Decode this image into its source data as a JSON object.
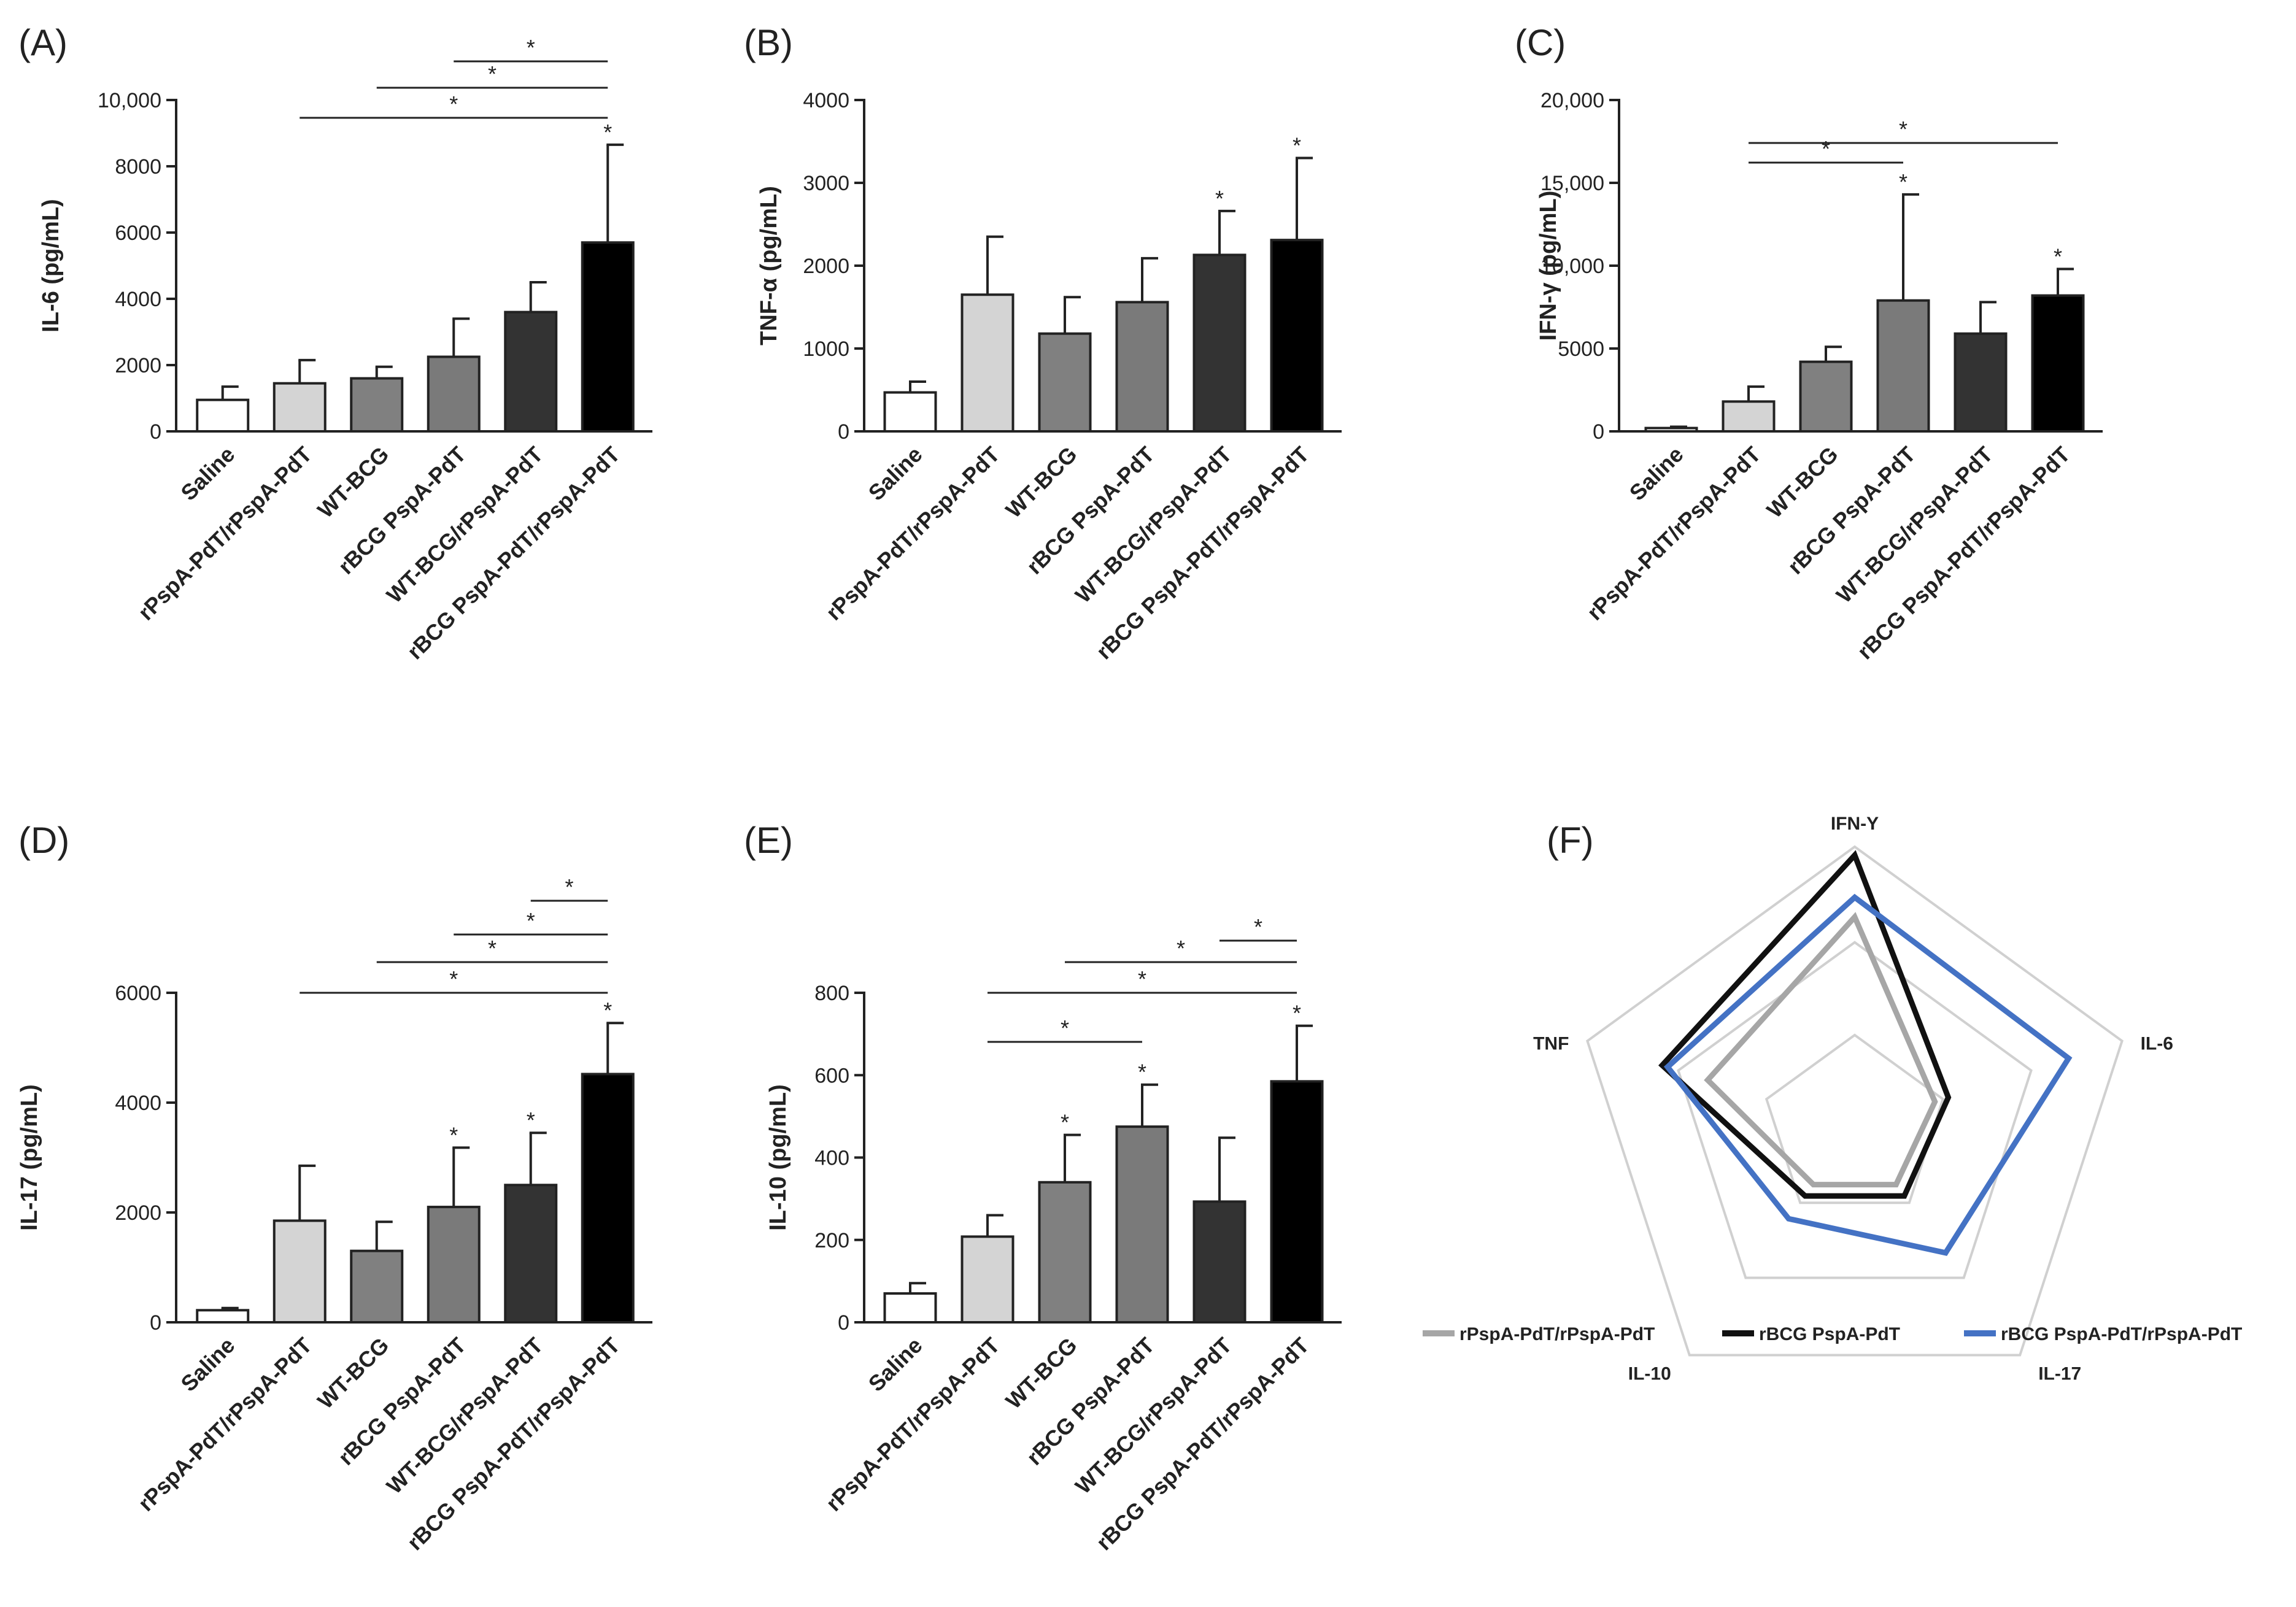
{
  "figure": {
    "categories": [
      "Saline",
      "rPspA-PdT/rPspA-PdT",
      "WT-BCG",
      "rBCG PspA-PdT",
      "WT-BCG/rPspA-PdT",
      "rBCG PspA-PdT/rPspA-PdT"
    ],
    "bar_colors": [
      "#ffffff",
      "#d4d4d4",
      "#808080",
      "#7a7a7a",
      "#333333",
      "#000000"
    ],
    "significance_marker": "*"
  },
  "chart_data": [
    {
      "type": "bar",
      "panel": "(A)",
      "ylabel": "IL-6 (pg/mL)",
      "ylim": [
        0,
        10000
      ],
      "yticks": [
        0,
        2000,
        4000,
        6000,
        8000,
        10000
      ],
      "ytick_labels": [
        "0",
        "2000",
        "4000",
        "6000",
        "8000",
        "10,000"
      ],
      "values": [
        950,
        1450,
        1600,
        2250,
        3600,
        5700
      ],
      "errors": [
        400,
        700,
        350,
        1150,
        900,
        2950
      ],
      "bar_stars": [
        false,
        false,
        false,
        false,
        false,
        true
      ],
      "brackets": [
        {
          "from": 3,
          "to": 5,
          "label": "*"
        },
        {
          "from": 2,
          "to": 5,
          "label": "*"
        },
        {
          "from": 1,
          "to": 5,
          "label": "*"
        }
      ]
    },
    {
      "type": "bar",
      "panel": "(B)",
      "ylabel": "TNF-α (pg/mL)",
      "ylim": [
        0,
        4000
      ],
      "yticks": [
        0,
        1000,
        2000,
        3000,
        4000
      ],
      "ytick_labels": [
        "0",
        "1000",
        "2000",
        "3000",
        "4000"
      ],
      "values": [
        470,
        1650,
        1180,
        1560,
        2130,
        2310
      ],
      "errors": [
        130,
        700,
        440,
        530,
        530,
        990
      ],
      "bar_stars": [
        false,
        false,
        false,
        false,
        true,
        true
      ],
      "brackets": []
    },
    {
      "type": "bar",
      "panel": "(C)",
      "ylabel": "IFN-γ (pg/mL)",
      "ylim": [
        0,
        20000
      ],
      "yticks": [
        0,
        5000,
        10000,
        15000,
        20000
      ],
      "ytick_labels": [
        "0",
        "5000",
        "10,000",
        "15,000",
        "20,000"
      ],
      "values": [
        200,
        1800,
        4200,
        7900,
        5900,
        8200
      ],
      "errors": [
        80,
        900,
        900,
        6400,
        1900,
        1600
      ],
      "bar_stars": [
        false,
        false,
        false,
        true,
        false,
        true
      ],
      "brackets": [
        {
          "from": 1,
          "to": 3,
          "label": "*"
        },
        {
          "from": 1,
          "to": 5,
          "label": "*"
        }
      ]
    },
    {
      "type": "bar",
      "panel": "(D)",
      "ylabel": "IL-17 (pg/mL)",
      "ylim": [
        0,
        6000
      ],
      "yticks": [
        0,
        2000,
        4000,
        6000
      ],
      "ytick_labels": [
        "0",
        "2000",
        "4000",
        "6000"
      ],
      "values": [
        220,
        1850,
        1300,
        2100,
        2500,
        4520
      ],
      "errors": [
        40,
        1000,
        530,
        1080,
        950,
        930
      ],
      "bar_stars": [
        false,
        false,
        false,
        true,
        true,
        true
      ],
      "brackets": [
        {
          "from": 4,
          "to": 5,
          "label": "*"
        },
        {
          "from": 3,
          "to": 5,
          "label": "*"
        },
        {
          "from": 2,
          "to": 5,
          "label": "*"
        },
        {
          "from": 1,
          "to": 5,
          "label": "*"
        }
      ]
    },
    {
      "type": "bar",
      "panel": "(E)",
      "ylabel": "IL-10 (pg/mL)",
      "ylim": [
        0,
        800
      ],
      "yticks": [
        0,
        200,
        400,
        600,
        800
      ],
      "ytick_labels": [
        "0",
        "200",
        "400",
        "600",
        "800"
      ],
      "values": [
        70,
        208,
        340,
        475,
        293,
        585
      ],
      "errors": [
        25,
        52,
        115,
        102,
        155,
        135
      ],
      "bar_stars": [
        false,
        false,
        true,
        true,
        false,
        true
      ],
      "brackets": [
        {
          "from": 4,
          "to": 5,
          "label": "*"
        },
        {
          "from": 2,
          "to": 5,
          "label": "*"
        },
        {
          "from": 1,
          "to": 5,
          "label": "*"
        },
        {
          "from": 1,
          "to": 3,
          "label": "*"
        }
      ]
    },
    {
      "type": "radar",
      "panel": "(F)",
      "axes": [
        "IFN-Y",
        "IL-6",
        "IL-17",
        "IL-10",
        "TNF"
      ],
      "grid_levels": [
        0.33,
        0.66,
        1.0
      ],
      "series": [
        {
          "name": "rPspA-PdT/rPspA-PdT",
          "color": "#a6a6a6",
          "values": [
            0.75,
            0.3,
            0.25,
            0.25,
            0.55
          ]
        },
        {
          "name": "rBCG PspA-PdT",
          "color": "#111111",
          "values": [
            0.97,
            0.35,
            0.3,
            0.3,
            0.72
          ]
        },
        {
          "name": "rBCG PspA-PdT/rPspA-PdT",
          "color": "#4472c4",
          "values": [
            0.82,
            0.8,
            0.55,
            0.4,
            0.7
          ]
        }
      ]
    }
  ]
}
